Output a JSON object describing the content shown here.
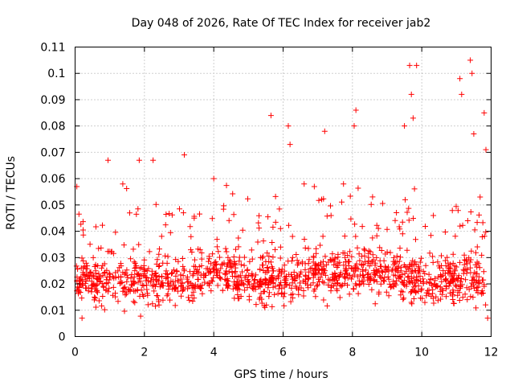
{
  "chart_data": {
    "type": "scatter",
    "title": "Day 048 of 2026, Rate Of TEC Index for receiver jab2",
    "xlabel": "GPS time / hours",
    "ylabel": "ROTI / TECUs",
    "xlim": [
      0,
      12
    ],
    "ylim": [
      0,
      0.11
    ],
    "xticks": [
      "0",
      "2",
      "4",
      "6",
      "8",
      "10",
      "12"
    ],
    "yticks": [
      "0",
      "0.01",
      "0.02",
      "0.03",
      "0.04",
      "0.05",
      "0.06",
      "0.07",
      "0.08",
      "0.09",
      "0.1",
      "0.11"
    ],
    "grid": true,
    "marker": "plus",
    "color": "#ff0000",
    "series": [
      {
        "name": "ROTI",
        "notable_points": [
          {
            "x": 9.65,
            "y": 0.103
          },
          {
            "x": 9.85,
            "y": 0.103
          },
          {
            "x": 11.4,
            "y": 0.105
          },
          {
            "x": 11.1,
            "y": 0.098
          },
          {
            "x": 11.45,
            "y": 0.1
          },
          {
            "x": 9.7,
            "y": 0.092
          },
          {
            "x": 11.15,
            "y": 0.092
          },
          {
            "x": 8.1,
            "y": 0.086
          },
          {
            "x": 11.8,
            "y": 0.085
          },
          {
            "x": 5.65,
            "y": 0.084
          },
          {
            "x": 9.75,
            "y": 0.083
          },
          {
            "x": 6.15,
            "y": 0.08
          },
          {
            "x": 7.2,
            "y": 0.078
          },
          {
            "x": 8.05,
            "y": 0.08
          },
          {
            "x": 9.5,
            "y": 0.08
          },
          {
            "x": 11.5,
            "y": 0.077
          },
          {
            "x": 6.2,
            "y": 0.073
          },
          {
            "x": 11.85,
            "y": 0.071
          },
          {
            "x": 3.15,
            "y": 0.069
          },
          {
            "x": 0.95,
            "y": 0.067
          },
          {
            "x": 1.85,
            "y": 0.067
          },
          {
            "x": 2.25,
            "y": 0.067
          },
          {
            "x": 0.05,
            "y": 0.057
          },
          {
            "x": 4.0,
            "y": 0.06
          },
          {
            "x": 6.9,
            "y": 0.057
          },
          {
            "x": 0.2,
            "y": 0.007
          },
          {
            "x": 11.9,
            "y": 0.007
          }
        ]
      }
    ]
  }
}
